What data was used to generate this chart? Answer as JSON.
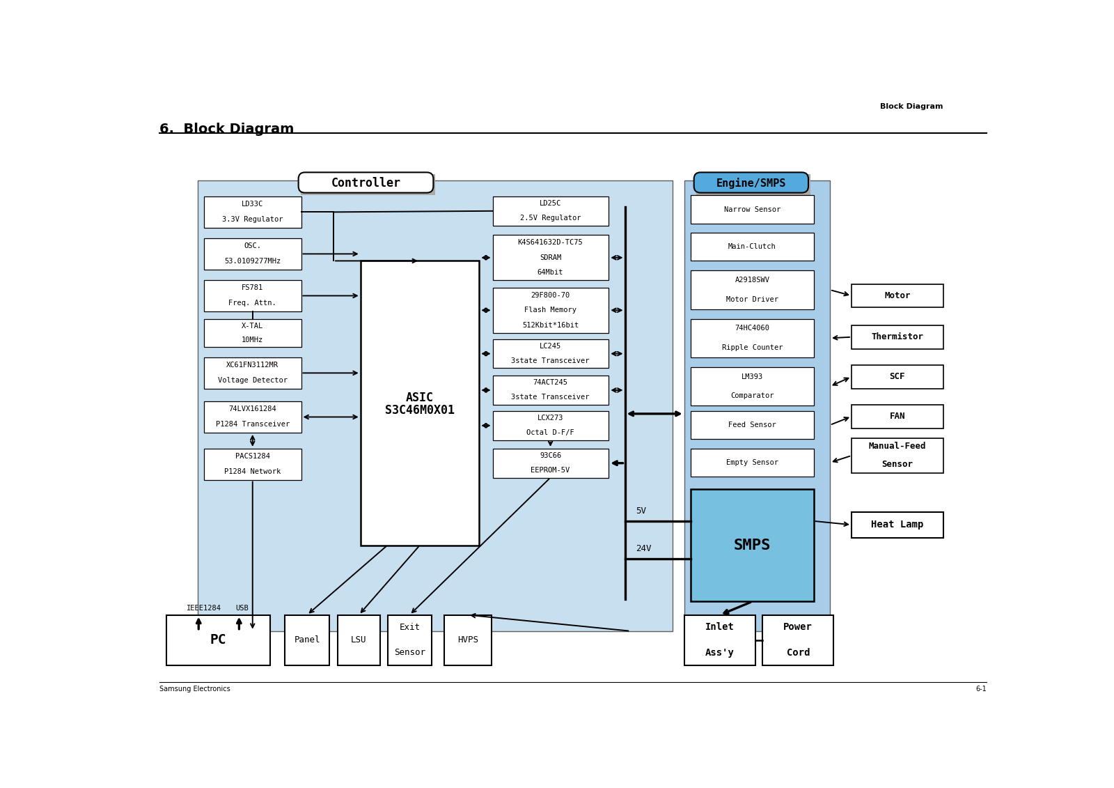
{
  "title": "6.  Block Diagram",
  "subtitle": "Block Diagram",
  "footer_left": "Samsung Electronics",
  "footer_right": "6-1",
  "bg_color": "#ffffff",
  "controller_bg": "#c8dff0",
  "engine_bg": "#a8cde8",
  "controller_label": "Controller",
  "engine_label": "Engine/SMPS",
  "asic_line1": "ASIC",
  "asic_line2": "S3C46M0X01",
  "smps_label": "SMPS",
  "left_boxes": [
    {
      "lines": [
        "LD33C",
        "3.3V Regulator"
      ]
    },
    {
      "lines": [
        "OSC.",
        "53.0109277MHz"
      ]
    },
    {
      "lines": [
        "FS781",
        "Freq. Attn."
      ]
    },
    {
      "lines": [
        "X-TAL",
        "10MHz"
      ]
    },
    {
      "lines": [
        "XC61FN3112MR",
        "Voltage Detector"
      ]
    },
    {
      "lines": [
        "74LVX161284",
        "P1284 Transceiver"
      ]
    },
    {
      "lines": [
        "PACS1284",
        "P1284 Network"
      ]
    }
  ],
  "right_boxes": [
    {
      "lines": [
        "LD25C",
        "2.5V Regulator"
      ]
    },
    {
      "lines": [
        "K4S641632D-TC75",
        "SDRAM",
        "64Mbit"
      ]
    },
    {
      "lines": [
        "29F800-70",
        "Flash Memory",
        "512Kbit*16bit"
      ]
    },
    {
      "lines": [
        "LC245",
        "3state Transceiver"
      ]
    },
    {
      "lines": [
        "74ACT245",
        "3state Transceiver"
      ]
    },
    {
      "lines": [
        "LCX273",
        "Octal D-F/F"
      ]
    },
    {
      "lines": [
        "93C66",
        "EEPROM-5V"
      ]
    }
  ],
  "engine_boxes": [
    {
      "lines": [
        "Narrow Sensor"
      ]
    },
    {
      "lines": [
        "Main-Clutch"
      ]
    },
    {
      "lines": [
        "A2918SWV",
        "Motor Driver"
      ]
    },
    {
      "lines": [
        "74HC4060",
        "Ripple Counter"
      ]
    },
    {
      "lines": [
        "LM393",
        "Comparator"
      ]
    },
    {
      "lines": [
        "Feed Sensor"
      ]
    },
    {
      "lines": [
        "Empty Sensor"
      ]
    }
  ],
  "ext_right_boxes": [
    {
      "lines": [
        "Motor"
      ],
      "bold": true
    },
    {
      "lines": [
        "Thermistor"
      ],
      "bold": true
    },
    {
      "lines": [
        "SCF"
      ],
      "bold": true
    },
    {
      "lines": [
        "FAN"
      ],
      "bold": true
    },
    {
      "lines": [
        "Manual-Feed",
        "Sensor"
      ],
      "bold": true
    }
  ],
  "bottom_boxes": [
    {
      "lines": [
        "PC"
      ],
      "bold": true,
      "large": true
    },
    {
      "lines": [
        "Panel"
      ],
      "bold": false,
      "large": false
    },
    {
      "lines": [
        "LSU"
      ],
      "bold": false,
      "large": false
    },
    {
      "lines": [
        "Exit",
        "Sensor"
      ],
      "bold": false,
      "large": false
    },
    {
      "lines": [
        "HVPS"
      ],
      "bold": false,
      "large": false
    }
  ],
  "bottom_right_boxes": [
    {
      "lines": [
        "Inlet",
        "Ass'y"
      ],
      "bold": true
    },
    {
      "lines": [
        "Power",
        "Cord"
      ],
      "bold": true
    }
  ],
  "heat_lamp": "Heat Lamp"
}
